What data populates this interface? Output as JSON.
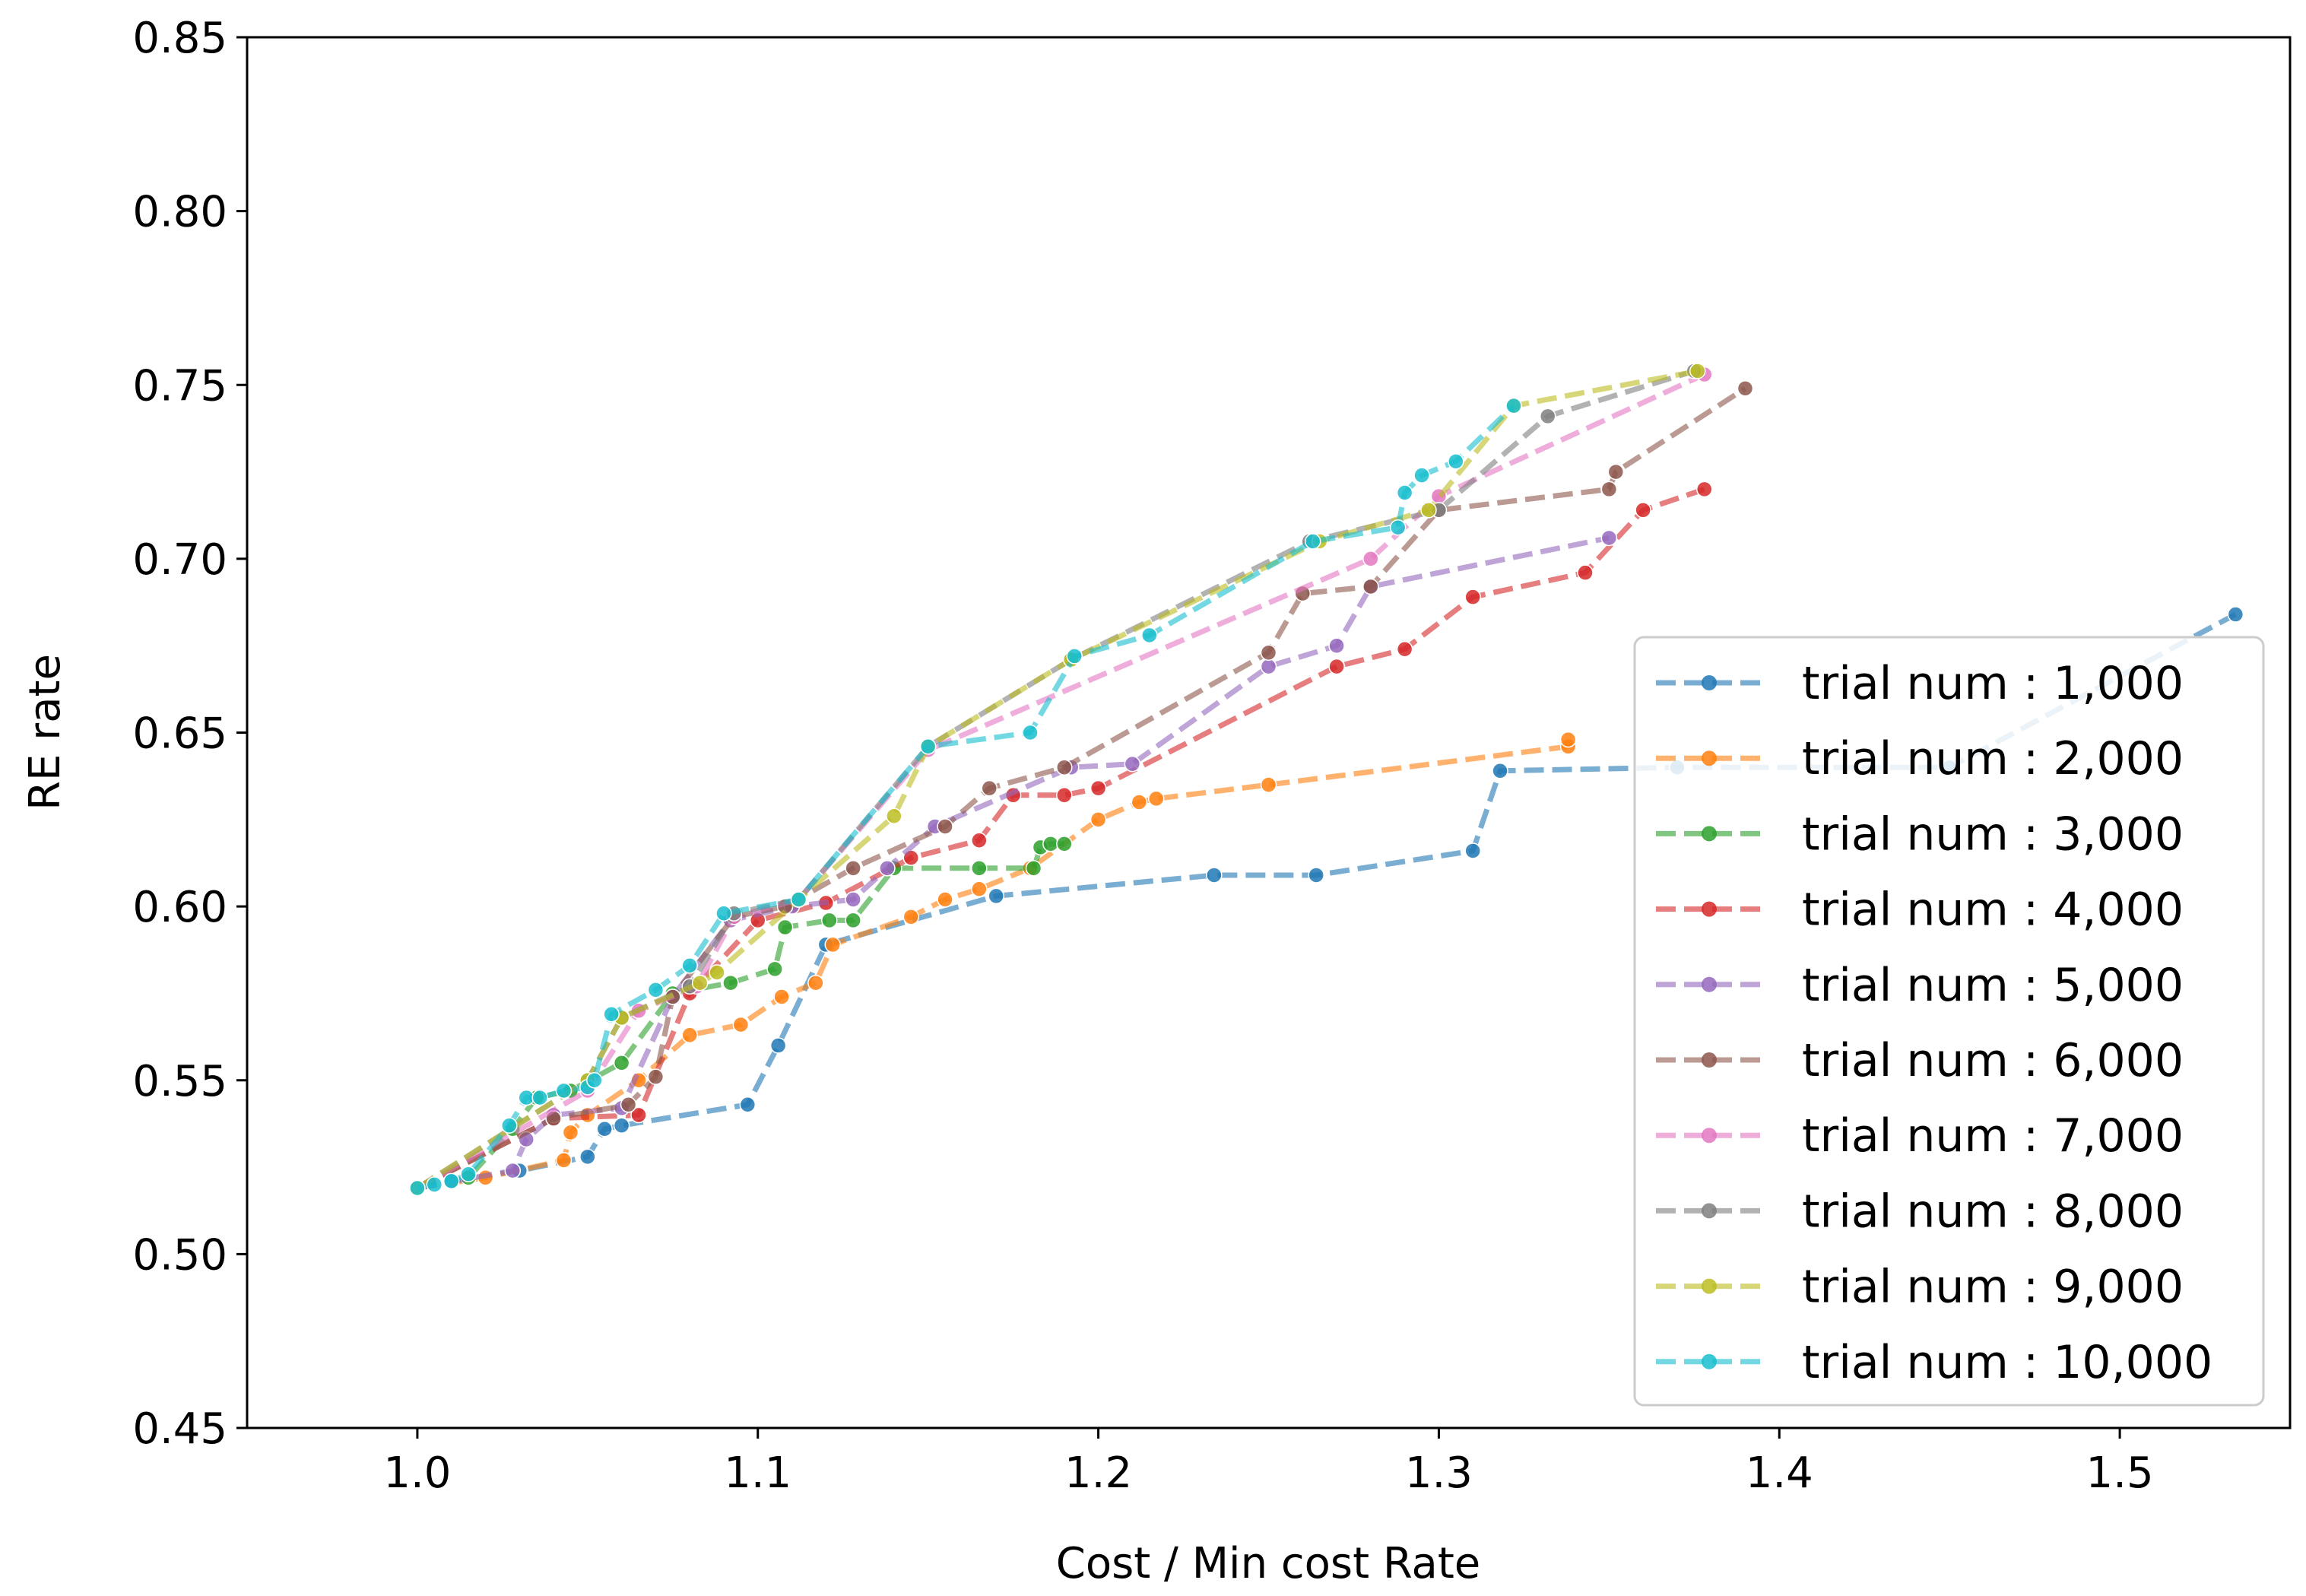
{
  "chart_data": {
    "type": "line",
    "xlabel": "Cost / Min cost Rate",
    "ylabel": "RE rate",
    "xlim": [
      0.95,
      1.55
    ],
    "ylim": [
      0.45,
      0.85
    ],
    "xticks": [
      1.0,
      1.1,
      1.2,
      1.3,
      1.4,
      1.5
    ],
    "xtick_labels": [
      "1.0",
      "1.1",
      "1.2",
      "1.3",
      "1.4",
      "1.5"
    ],
    "yticks": [
      0.45,
      0.5,
      0.55,
      0.6,
      0.65,
      0.7,
      0.75,
      0.8,
      0.85
    ],
    "ytick_labels": [
      "0.45",
      "0.50",
      "0.55",
      "0.60",
      "0.65",
      "0.70",
      "0.75",
      "0.80",
      "0.85"
    ],
    "legend_position": "lower-right",
    "series": [
      {
        "name": "trial num : 1,000",
        "color": "#1f77b4",
        "points": [
          [
            1.0,
            0.519
          ],
          [
            1.01,
            0.521
          ],
          [
            1.03,
            0.524
          ],
          [
            1.05,
            0.528
          ],
          [
            1.055,
            0.536
          ],
          [
            1.06,
            0.537
          ],
          [
            1.097,
            0.543
          ],
          [
            1.106,
            0.56
          ],
          [
            1.12,
            0.589
          ],
          [
            1.17,
            0.603
          ],
          [
            1.234,
            0.609
          ],
          [
            1.264,
            0.609
          ],
          [
            1.31,
            0.616
          ],
          [
            1.318,
            0.639
          ],
          [
            1.37,
            0.64
          ],
          [
            1.45,
            0.64
          ],
          [
            1.534,
            0.684
          ]
        ]
      },
      {
        "name": "trial num : 2,000",
        "color": "#ff7f0e",
        "points": [
          [
            1.0,
            0.519
          ],
          [
            1.02,
            0.522
          ],
          [
            1.043,
            0.527
          ],
          [
            1.045,
            0.535
          ],
          [
            1.05,
            0.54
          ],
          [
            1.065,
            0.55
          ],
          [
            1.08,
            0.563
          ],
          [
            1.095,
            0.566
          ],
          [
            1.107,
            0.574
          ],
          [
            1.117,
            0.578
          ],
          [
            1.122,
            0.589
          ],
          [
            1.145,
            0.597
          ],
          [
            1.155,
            0.602
          ],
          [
            1.165,
            0.605
          ],
          [
            1.18,
            0.611
          ],
          [
            1.2,
            0.625
          ],
          [
            1.212,
            0.63
          ],
          [
            1.217,
            0.631
          ],
          [
            1.25,
            0.635
          ],
          [
            1.338,
            0.646
          ],
          [
            1.338,
            0.648
          ]
        ]
      },
      {
        "name": "trial num : 3,000",
        "color": "#2ca02c",
        "points": [
          [
            1.0,
            0.519
          ],
          [
            1.015,
            0.522
          ],
          [
            1.028,
            0.536
          ],
          [
            1.035,
            0.545
          ],
          [
            1.045,
            0.547
          ],
          [
            1.06,
            0.555
          ],
          [
            1.075,
            0.575
          ],
          [
            1.092,
            0.578
          ],
          [
            1.105,
            0.582
          ],
          [
            1.108,
            0.594
          ],
          [
            1.121,
            0.596
          ],
          [
            1.128,
            0.596
          ],
          [
            1.14,
            0.611
          ],
          [
            1.165,
            0.611
          ],
          [
            1.181,
            0.611
          ],
          [
            1.183,
            0.617
          ],
          [
            1.186,
            0.618
          ],
          [
            1.19,
            0.618
          ]
        ]
      },
      {
        "name": "trial num : 4,000",
        "color": "#d62728",
        "points": [
          [
            1.0,
            0.519
          ],
          [
            1.04,
            0.539
          ],
          [
            1.065,
            0.54
          ],
          [
            1.08,
            0.575
          ],
          [
            1.1,
            0.596
          ],
          [
            1.12,
            0.601
          ],
          [
            1.145,
            0.614
          ],
          [
            1.165,
            0.619
          ],
          [
            1.175,
            0.632
          ],
          [
            1.19,
            0.632
          ],
          [
            1.2,
            0.634
          ],
          [
            1.27,
            0.669
          ],
          [
            1.29,
            0.674
          ],
          [
            1.31,
            0.689
          ],
          [
            1.343,
            0.696
          ],
          [
            1.36,
            0.714
          ],
          [
            1.378,
            0.72
          ]
        ]
      },
      {
        "name": "trial num : 5,000",
        "color": "#9467bd",
        "points": [
          [
            1.0,
            0.519
          ],
          [
            1.028,
            0.524
          ],
          [
            1.032,
            0.533
          ],
          [
            1.04,
            0.54
          ],
          [
            1.06,
            0.542
          ],
          [
            1.075,
            0.574
          ],
          [
            1.092,
            0.596
          ],
          [
            1.11,
            0.6
          ],
          [
            1.128,
            0.602
          ],
          [
            1.138,
            0.611
          ],
          [
            1.152,
            0.623
          ],
          [
            1.192,
            0.64
          ],
          [
            1.21,
            0.641
          ],
          [
            1.25,
            0.669
          ],
          [
            1.27,
            0.675
          ],
          [
            1.28,
            0.692
          ],
          [
            1.35,
            0.706
          ]
        ]
      },
      {
        "name": "trial num : 6,000",
        "color": "#8c564b",
        "points": [
          [
            1.0,
            0.519
          ],
          [
            1.04,
            0.539
          ],
          [
            1.062,
            0.543
          ],
          [
            1.07,
            0.551
          ],
          [
            1.075,
            0.574
          ],
          [
            1.093,
            0.597
          ],
          [
            1.108,
            0.6
          ],
          [
            1.128,
            0.611
          ],
          [
            1.155,
            0.623
          ],
          [
            1.168,
            0.634
          ],
          [
            1.19,
            0.64
          ],
          [
            1.25,
            0.673
          ],
          [
            1.26,
            0.69
          ],
          [
            1.28,
            0.692
          ],
          [
            1.3,
            0.714
          ],
          [
            1.35,
            0.72
          ],
          [
            1.352,
            0.725
          ],
          [
            1.39,
            0.749
          ]
        ]
      },
      {
        "name": "trial num : 7,000",
        "color": "#e377c2",
        "points": [
          [
            1.0,
            0.519
          ],
          [
            1.05,
            0.547
          ],
          [
            1.065,
            0.57
          ],
          [
            1.082,
            0.577
          ],
          [
            1.093,
            0.597
          ],
          [
            1.112,
            0.602
          ],
          [
            1.15,
            0.645
          ],
          [
            1.28,
            0.7
          ],
          [
            1.3,
            0.718
          ],
          [
            1.378,
            0.753
          ]
        ]
      },
      {
        "name": "trial num : 8,000",
        "color": "#7f7f7f",
        "points": [
          [
            1.0,
            0.519
          ],
          [
            1.05,
            0.55
          ],
          [
            1.06,
            0.568
          ],
          [
            1.08,
            0.577
          ],
          [
            1.093,
            0.598
          ],
          [
            1.112,
            0.602
          ],
          [
            1.15,
            0.646
          ],
          [
            1.192,
            0.671
          ],
          [
            1.262,
            0.705
          ],
          [
            1.3,
            0.714
          ],
          [
            1.332,
            0.741
          ],
          [
            1.375,
            0.754
          ]
        ]
      },
      {
        "name": "trial num : 9,000",
        "color": "#bcbd22",
        "points": [
          [
            1.0,
            0.519
          ],
          [
            1.05,
            0.55
          ],
          [
            1.06,
            0.568
          ],
          [
            1.083,
            0.578
          ],
          [
            1.088,
            0.581
          ],
          [
            1.112,
            0.602
          ],
          [
            1.14,
            0.626
          ],
          [
            1.15,
            0.646
          ],
          [
            1.192,
            0.671
          ],
          [
            1.265,
            0.705
          ],
          [
            1.297,
            0.714
          ],
          [
            1.322,
            0.744
          ],
          [
            1.376,
            0.754
          ]
        ]
      },
      {
        "name": "trial num : 10,000",
        "color": "#17becf",
        "points": [
          [
            1.0,
            0.519
          ],
          [
            1.005,
            0.52
          ],
          [
            1.01,
            0.521
          ],
          [
            1.015,
            0.523
          ],
          [
            1.027,
            0.537
          ],
          [
            1.032,
            0.545
          ],
          [
            1.036,
            0.545
          ],
          [
            1.043,
            0.547
          ],
          [
            1.05,
            0.548
          ],
          [
            1.052,
            0.55
          ],
          [
            1.057,
            0.569
          ],
          [
            1.07,
            0.576
          ],
          [
            1.08,
            0.583
          ],
          [
            1.09,
            0.598
          ],
          [
            1.112,
            0.602
          ],
          [
            1.15,
            0.646
          ],
          [
            1.18,
            0.65
          ],
          [
            1.193,
            0.672
          ],
          [
            1.215,
            0.678
          ],
          [
            1.263,
            0.705
          ],
          [
            1.288,
            0.709
          ],
          [
            1.29,
            0.719
          ],
          [
            1.295,
            0.724
          ],
          [
            1.305,
            0.728
          ],
          [
            1.322,
            0.744
          ]
        ]
      }
    ]
  }
}
